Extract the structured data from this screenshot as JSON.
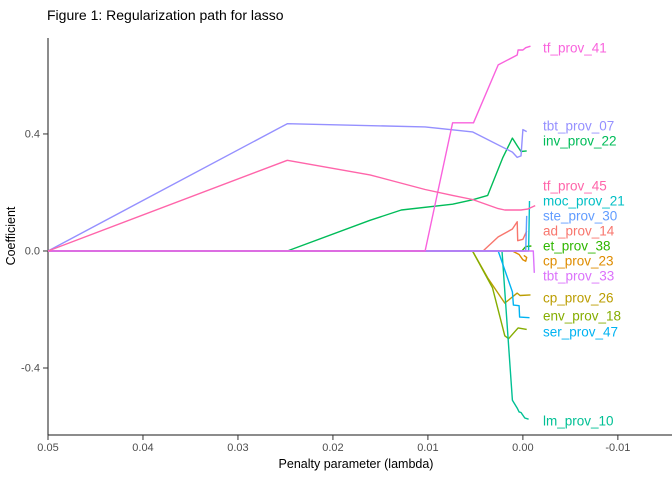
{
  "chart_data": {
    "type": "line",
    "title": "Figure 1: Regularization path for lasso",
    "xlabel": "Penalty parameter (lambda)",
    "ylabel": "Coefficient",
    "x_axis_reversed": true,
    "grid": false,
    "legend": "direct-labels-at-line-ends",
    "xlim": [
      0.05,
      -0.0157
    ],
    "ylim": [
      -0.629,
      0.728
    ],
    "x_ticks": [
      {
        "value": 0.05,
        "label": "0.05"
      },
      {
        "value": 0.04,
        "label": "0.04"
      },
      {
        "value": 0.03,
        "label": "0.03"
      },
      {
        "value": 0.02,
        "label": "0.02"
      },
      {
        "value": 0.01,
        "label": "0.01"
      },
      {
        "value": 0.0,
        "label": "0.00"
      },
      {
        "value": -0.01,
        "label": "-0.01"
      }
    ],
    "y_ticks": [
      {
        "value": 0.4,
        "label": "0.4"
      },
      {
        "value": 0.0,
        "label": "0.0"
      },
      {
        "value": -0.4,
        "label": "-0.4"
      }
    ],
    "series": [
      {
        "name": "ad_prov_14",
        "color": "#F8766D",
        "label_value": 0.068,
        "points": [
          [
            0.05,
            0
          ],
          [
            0.0042,
            0
          ],
          [
            0.0026,
            0.048
          ],
          [
            0.0011,
            0.075
          ],
          [
            0.0006,
            0.1
          ],
          [
            0.00055,
            0.035
          ],
          [
            0.0,
            0.04
          ],
          [
            -0.0004,
            0.068
          ]
        ]
      },
      {
        "name": "cp_prov_23",
        "color": "#DE8C00",
        "label_value": -0.034,
        "points": [
          [
            0.05,
            0
          ],
          [
            0.0011,
            0
          ],
          [
            0.0004,
            -0.012
          ],
          [
            0.0,
            -0.03
          ],
          [
            -0.0003,
            -0.035
          ],
          [
            -0.0004,
            -0.022
          ],
          [
            -0.0001,
            -0.015
          ]
        ]
      },
      {
        "name": "cp_prov_26",
        "color": "#BB9D00",
        "label_value": -0.161,
        "points": [
          [
            0.05,
            0
          ],
          [
            0.0053,
            0
          ],
          [
            0.0037,
            -0.092
          ],
          [
            0.0019,
            -0.178
          ],
          [
            0.0006,
            -0.144
          ],
          [
            0.0003,
            -0.152
          ],
          [
            -0.0008,
            -0.15
          ]
        ]
      },
      {
        "name": "env_prov_18",
        "color": "#85AD00",
        "label_value": -0.222,
        "points": [
          [
            0.05,
            0
          ],
          [
            0.0053,
            0
          ],
          [
            0.0032,
            -0.126
          ],
          [
            0.0019,
            -0.29
          ],
          [
            0.0015,
            -0.3
          ],
          [
            0.0005,
            -0.263
          ],
          [
            -0.0004,
            -0.268
          ]
        ]
      },
      {
        "name": "et_prov_38",
        "color": "#2FB600",
        "label_value": 0.017,
        "points": [
          [
            0.05,
            0
          ],
          [
            0.0001,
            0
          ],
          [
            -0.0003,
            0.015
          ],
          [
            -0.0009,
            0.017
          ]
        ]
      },
      {
        "name": "inv_prov_22",
        "color": "#00BC59",
        "label_value": 0.376,
        "points": [
          [
            0.05,
            0
          ],
          [
            0.0248,
            0
          ],
          [
            0.0161,
            0.105
          ],
          [
            0.0128,
            0.14
          ],
          [
            0.0074,
            0.16
          ],
          [
            0.0053,
            0.175
          ],
          [
            0.0037,
            0.19
          ],
          [
            0.0021,
            0.32
          ],
          [
            0.0011,
            0.386
          ],
          [
            0.0006,
            0.36
          ],
          [
            0.0002,
            0.34
          ],
          [
            -0.0004,
            0.342
          ]
        ]
      },
      {
        "name": "lm_prov_10",
        "color": "#00C094",
        "label_value": -0.581,
        "points": [
          [
            0.05,
            0
          ],
          [
            0.0022,
            0
          ],
          [
            0.0011,
            -0.51
          ],
          [
            0.0006,
            -0.537
          ],
          [
            0.0004,
            -0.55
          ],
          [
            0.0002,
            -0.552
          ],
          [
            -0.0002,
            -0.571
          ],
          [
            -0.0006,
            -0.575
          ]
        ]
      },
      {
        "name": "moc_prov_21",
        "color": "#00BFC4",
        "label_value": 0.171,
        "points": [
          [
            0.05,
            0
          ],
          [
            -0.0006,
            0
          ],
          [
            -0.0007,
            0.171
          ]
        ]
      },
      {
        "name": "ser_prov_47",
        "color": "#00B3F2",
        "label_value": -0.277,
        "points": [
          [
            0.05,
            0
          ],
          [
            0.0026,
            0
          ],
          [
            0.0011,
            -0.14
          ],
          [
            0.001,
            -0.185
          ],
          [
            0.0004,
            -0.187
          ],
          [
            0.00035,
            -0.226
          ],
          [
            -0.0007,
            -0.228
          ]
        ]
      },
      {
        "name": "ste_prov_30",
        "color": "#619CFF",
        "label_value": 0.12,
        "points": [
          [
            0.05,
            0
          ],
          [
            -0.0003,
            0
          ],
          [
            -0.0004,
            0.12
          ]
        ]
      },
      {
        "name": "tbt_prov_07",
        "color": "#9590FF",
        "label_value": 0.427,
        "points": [
          [
            0.05,
            0
          ],
          [
            0.0248,
            0.435
          ],
          [
            0.0103,
            0.424
          ],
          [
            0.0053,
            0.407
          ],
          [
            0.0011,
            0.338
          ],
          [
            0.0006,
            0.32
          ],
          [
            0.0002,
            0.325
          ],
          [
            0.0,
            0.415
          ],
          [
            -0.0004,
            0.408
          ]
        ]
      },
      {
        "name": "tbt_prov_33",
        "color": "#DB72FB",
        "label_value": -0.085,
        "points": [
          [
            0.05,
            0
          ],
          [
            -0.0011,
            0
          ],
          [
            -0.0012,
            -0.075
          ]
        ]
      },
      {
        "name": "tf_prov_41",
        "color": "#F962DD",
        "label_value": 0.694,
        "points": [
          [
            0.05,
            0
          ],
          [
            0.0103,
            0
          ],
          [
            0.0074,
            0.438
          ],
          [
            0.0052,
            0.438
          ],
          [
            0.0026,
            0.636
          ],
          [
            0.0006,
            0.67
          ],
          [
            0.0005,
            0.687
          ],
          [
            0.0,
            0.687
          ],
          [
            -0.0003,
            0.695
          ],
          [
            -0.0008,
            0.7
          ]
        ]
      },
      {
        "name": "tf_prov_45",
        "color": "#FF65AA",
        "label_value": 0.222,
        "points": [
          [
            0.05,
            0
          ],
          [
            0.0248,
            0.31
          ],
          [
            0.0161,
            0.26
          ],
          [
            0.0103,
            0.21
          ],
          [
            0.0074,
            0.19
          ],
          [
            0.0053,
            0.176
          ],
          [
            0.0026,
            0.145
          ],
          [
            0.0019,
            0.14
          ],
          [
            0.0002,
            0.14
          ],
          [
            -0.0005,
            0.143
          ],
          [
            -0.0013,
            0.155
          ]
        ]
      }
    ]
  }
}
